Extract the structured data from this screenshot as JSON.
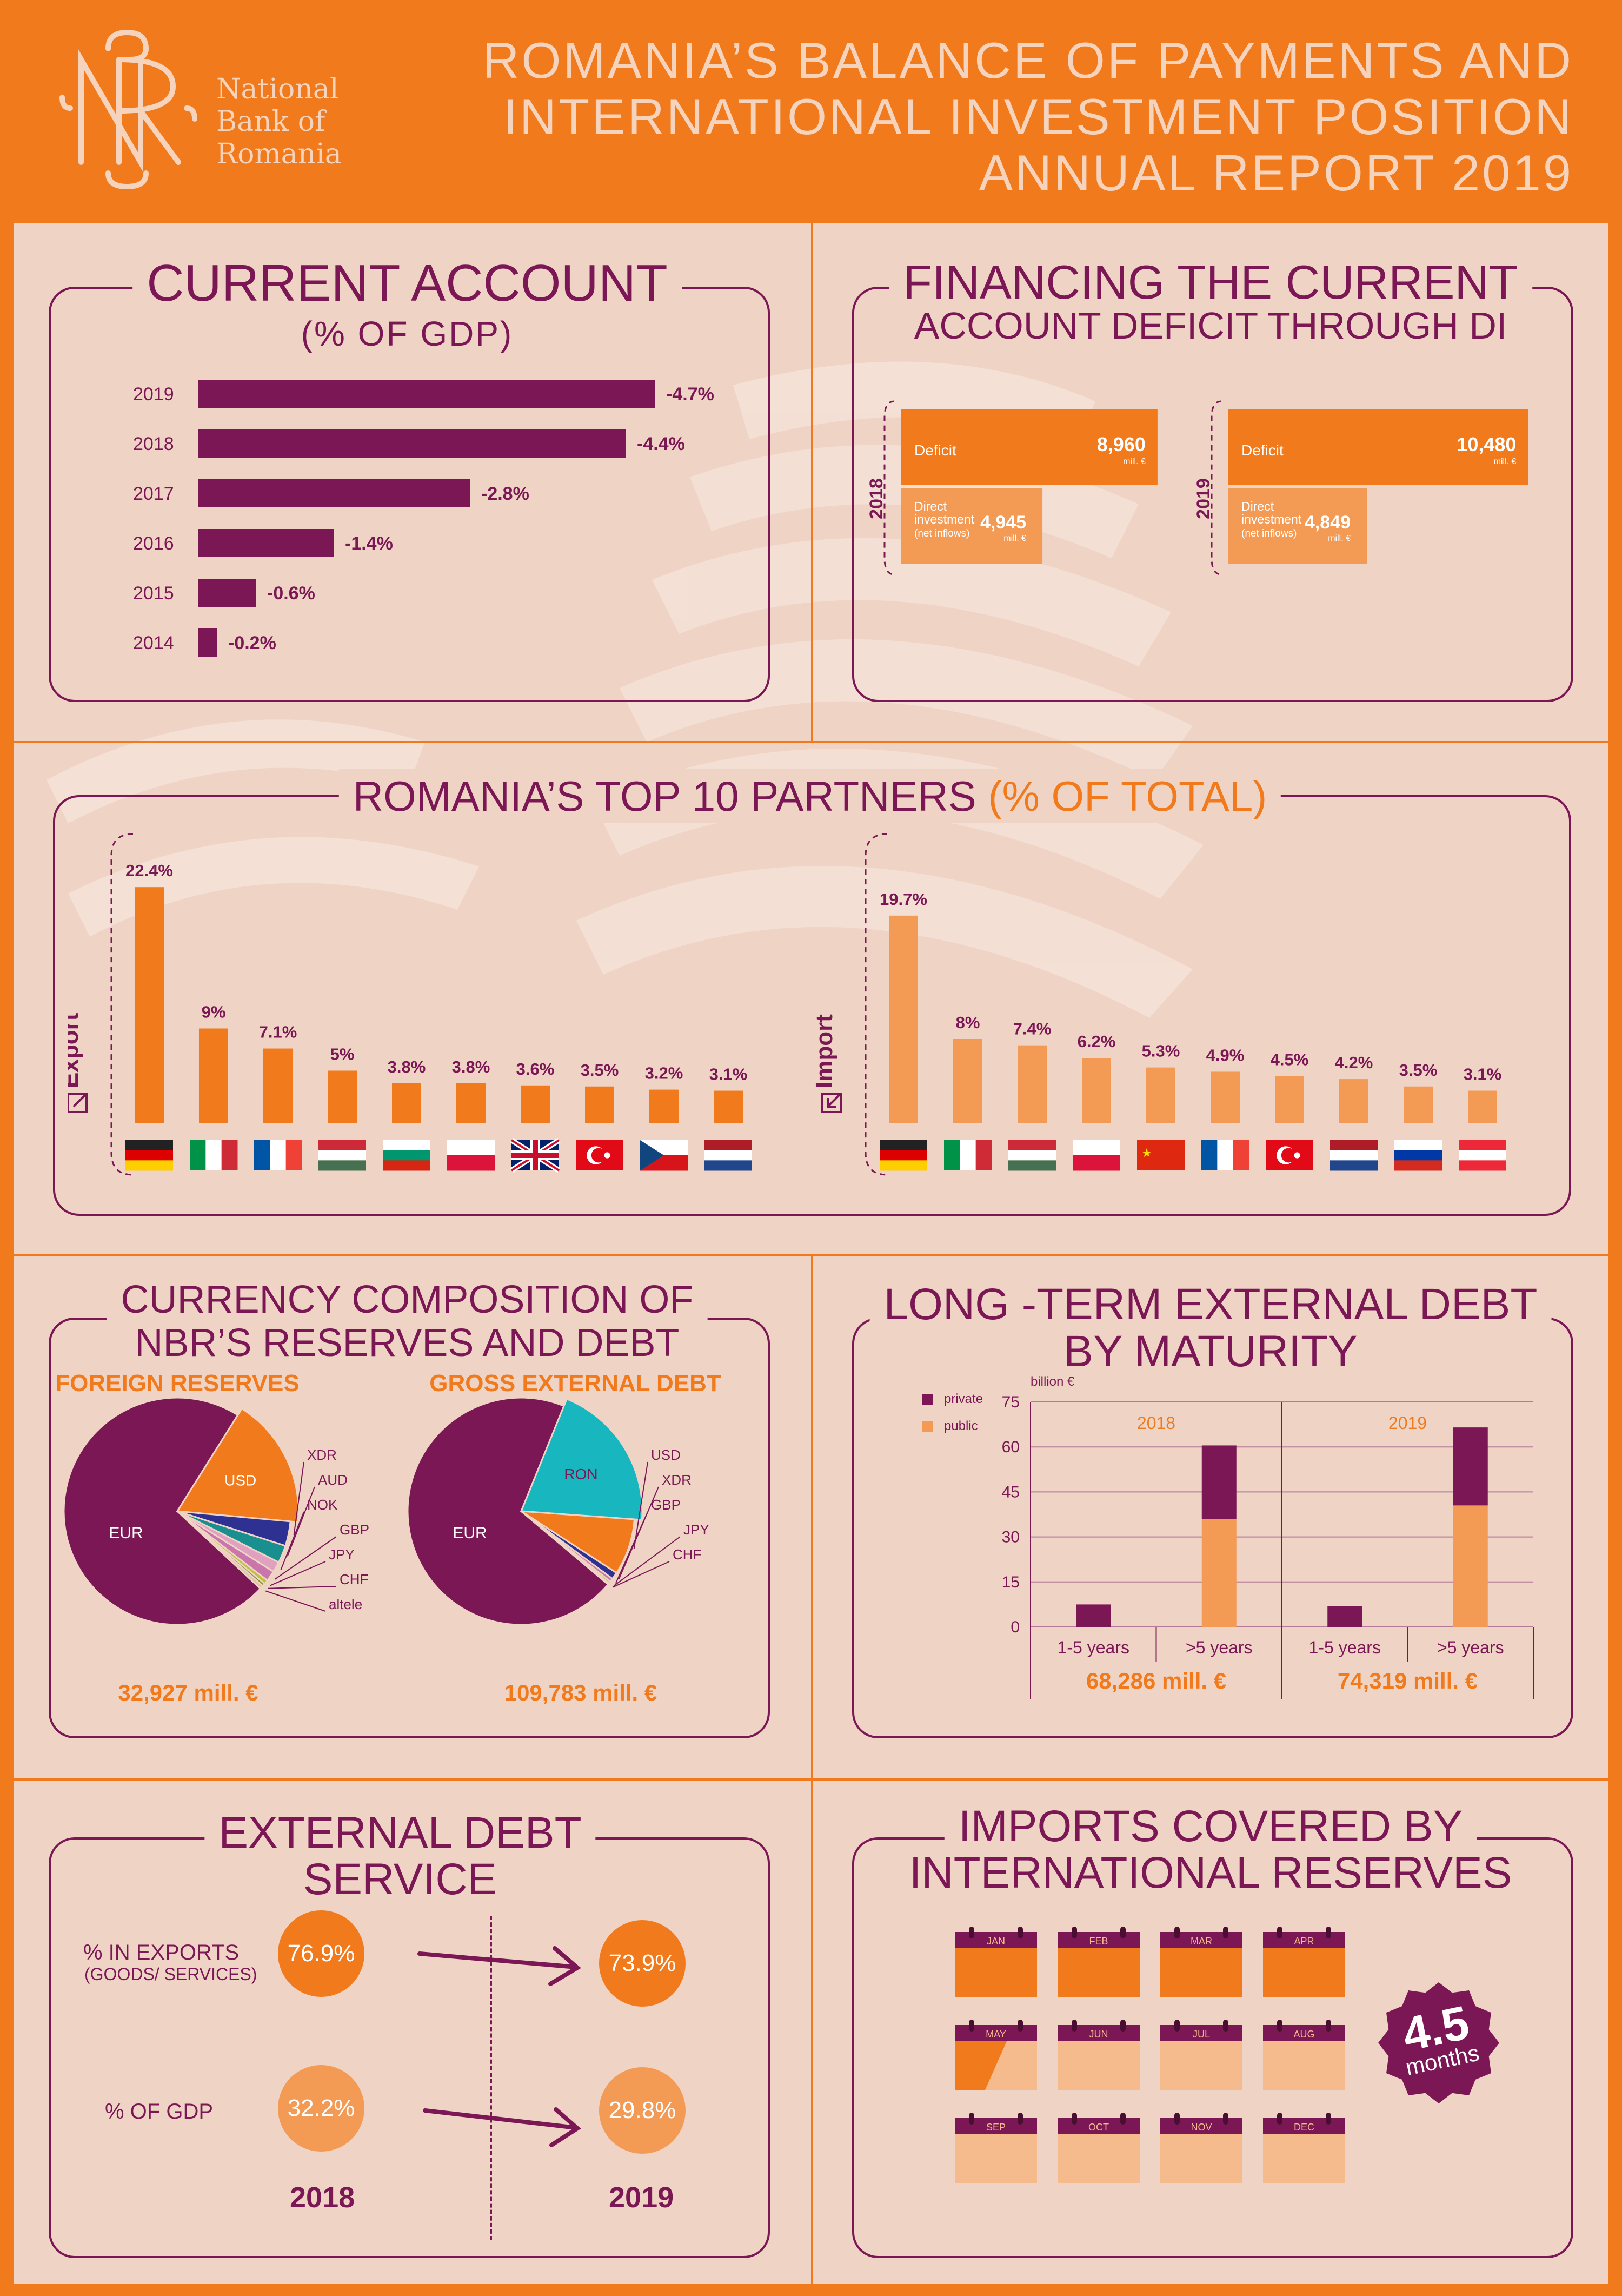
{
  "header": {
    "logo_lines": [
      "National",
      "Bank of",
      "Romania"
    ],
    "title_lines": [
      "ROMANIA’S BALANCE OF PAYMENTS AND",
      "INTERNATIONAL INVESTMENT POSITION",
      "ANNUAL REPORT 2019"
    ]
  },
  "current_account": {
    "title": "CURRENT ACCOUNT",
    "subtitle": "(% OF GDP)",
    "chart_data": {
      "type": "bar",
      "orientation": "horizontal",
      "categories": [
        "2019",
        "2018",
        "2017",
        "2016",
        "2015",
        "2014"
      ],
      "values": [
        -4.7,
        -4.4,
        -2.8,
        -1.4,
        -0.6,
        -0.2
      ],
      "labels": [
        "-4.7%",
        "-4.4%",
        "-2.8%",
        "-1.4%",
        "-0.6%",
        "-0.2%"
      ],
      "color": "#7B1755"
    }
  },
  "financing": {
    "title_lines": [
      "FINANCING THE CURRENT",
      "ACCOUNT DEFICIT THROUGH DI"
    ],
    "unit": "mill. €",
    "deficit_label": "Deficit",
    "di_label_lines": [
      "Direct",
      "investment",
      "(net inflows)"
    ],
    "chart_data": {
      "type": "bar",
      "groups": [
        {
          "year": "2018",
          "deficit": 8960,
          "deficit_text": "8,960",
          "direct_investment": 4945,
          "direct_investment_text": "4,945"
        },
        {
          "year": "2019",
          "deficit": 10480,
          "deficit_text": "10,480",
          "direct_investment": 4849,
          "direct_investment_text": "4,849"
        }
      ]
    }
  },
  "partners": {
    "title_main": "ROMANIA’S TOP 10 PARTNERS",
    "title_unit": "(% OF TOTAL)",
    "chart_data": [
      {
        "type": "bar",
        "name": "Export",
        "color": "#F07A1C",
        "countries": [
          "DE",
          "IT",
          "FR",
          "HU",
          "BG",
          "PL",
          "GB",
          "TR",
          "CZ",
          "NL"
        ],
        "values": [
          22.4,
          9,
          7.1,
          5,
          3.8,
          3.8,
          3.6,
          3.5,
          3.2,
          3.1
        ],
        "labels": [
          "22.4%",
          "9%",
          "7.1%",
          "5%",
          "3.8%",
          "3.8%",
          "3.6%",
          "3.5%",
          "3.2%",
          "3.1%"
        ]
      },
      {
        "type": "bar",
        "name": "Import",
        "color": "#F39A55",
        "countries": [
          "DE",
          "IT",
          "HU",
          "PL",
          "CN",
          "FR",
          "TR",
          "NL",
          "RU",
          "AT"
        ],
        "values": [
          19.7,
          8,
          7.4,
          6.2,
          5.3,
          4.9,
          4.5,
          4.2,
          3.5,
          3.1
        ],
        "labels": [
          "19.7%",
          "8%",
          "7.4%",
          "6.2%",
          "5.3%",
          "4.9%",
          "4.5%",
          "4.2%",
          "3.5%",
          "3.1%"
        ]
      }
    ]
  },
  "currency": {
    "title_lines": [
      "CURRENCY COMPOSITION OF",
      "NBR’S RESERVES AND DEBT"
    ],
    "chart_data": [
      {
        "type": "pie",
        "title": "FOREIGN RESERVES",
        "total": "32,927 mill. €",
        "slices": [
          {
            "label": "EUR",
            "value": 72.0,
            "color": "#7B1755"
          },
          {
            "label": "USD",
            "value": 17.5,
            "color": "#F07A1C"
          },
          {
            "label": "XDR",
            "value": 3.5,
            "color": "#2E3192"
          },
          {
            "label": "AUD",
            "value": 2.5,
            "color": "#1A8F8F"
          },
          {
            "label": "NOK",
            "value": 1.5,
            "color": "#E0A0C0"
          },
          {
            "label": "GBP",
            "value": 1.5,
            "color": "#C977AA"
          },
          {
            "label": "JPY",
            "value": 0.6,
            "color": "#B9C23A"
          },
          {
            "label": "CHF",
            "value": 0.4,
            "color": "#8A8F2A"
          },
          {
            "label": "altele",
            "value": 0.5,
            "color": "#D9C7A8"
          }
        ]
      },
      {
        "type": "pie",
        "title": "GROSS EXTERNAL DEBT",
        "total": "109,783 mill. €",
        "slices": [
          {
            "label": "EUR",
            "value": 70.0,
            "color": "#7B1755"
          },
          {
            "label": "RON",
            "value": 20.0,
            "color": "#18B7C0"
          },
          {
            "label": "USD",
            "value": 8.0,
            "color": "#F07A1C"
          },
          {
            "label": "XDR",
            "value": 1.0,
            "color": "#2E3192"
          },
          {
            "label": "GBP",
            "value": 0.5,
            "color": "#C977AA"
          },
          {
            "label": "JPY",
            "value": 0.3,
            "color": "#B9C23A"
          },
          {
            "label": "CHF",
            "value": 0.2,
            "color": "#8A8F2A"
          }
        ]
      }
    ]
  },
  "longterm": {
    "title_lines": [
      "LONG -TERM EXTERNAL DEBT",
      "BY MATURITY"
    ],
    "chart_data": {
      "type": "bar",
      "stacked": true,
      "unit_label": "billion €",
      "ylim": [
        0,
        75
      ],
      "yticks": [
        0,
        15,
        30,
        45,
        60,
        75
      ],
      "legend": [
        "private",
        "public"
      ],
      "colors": {
        "private": "#7B1755",
        "public": "#F39A55"
      },
      "groups": [
        {
          "year": "2018",
          "total": "68,286 mill. €",
          "categories": [
            "1-5 years",
            ">5 years"
          ],
          "private": [
            7.5,
            24.5
          ],
          "public": [
            0,
            36
          ]
        },
        {
          "year": "2019",
          "total": "74,319 mill. €",
          "categories": [
            "1-5 years",
            ">5 years"
          ],
          "private": [
            7,
            26
          ],
          "public": [
            0,
            40.5
          ]
        }
      ]
    }
  },
  "debt_service": {
    "title_lines": [
      "EXTERNAL DEBT",
      "SERVICE"
    ],
    "row1_label": "% IN EXPORTS",
    "row1_sub": "(GOODS/ SERVICES)",
    "row2_label": "% OF GDP",
    "years": [
      "2018",
      "2019"
    ],
    "exports": [
      "76.9%",
      "73.9%"
    ],
    "gdp": [
      "32.2%",
      "29.8%"
    ]
  },
  "imports_covered": {
    "title_lines": [
      "IMPORTS COVERED BY",
      "INTERNATIONAL RESERVES"
    ],
    "months": [
      "JAN",
      "FEB",
      "MAR",
      "APR",
      "MAY",
      "JUN",
      "JUL",
      "AUG",
      "SEP",
      "OCT",
      "NOV",
      "DEC"
    ],
    "value": "4.5",
    "unit": "months",
    "covered_months": 4.5
  }
}
